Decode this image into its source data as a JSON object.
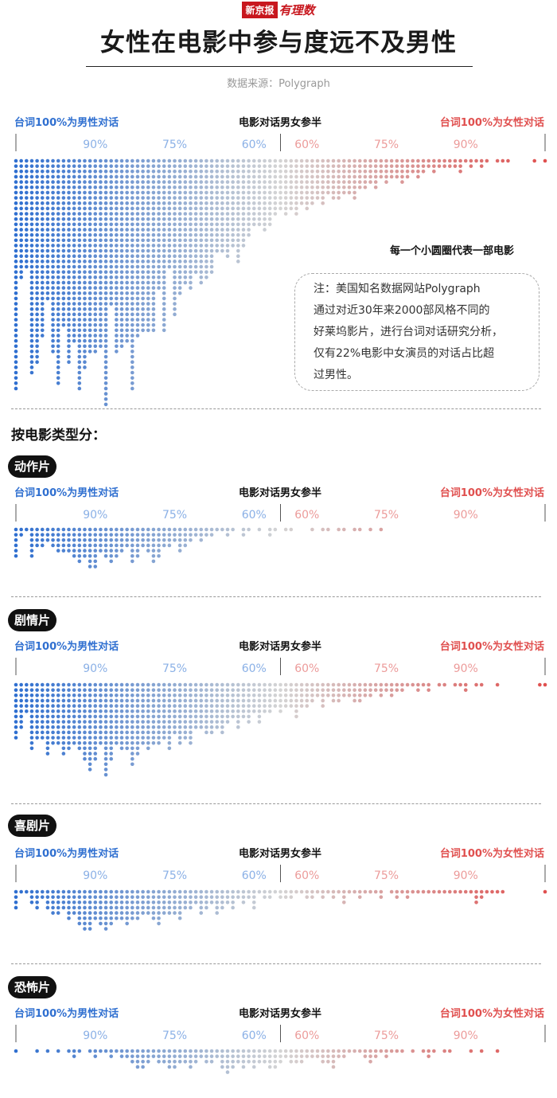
{
  "header": {
    "brand_name": "新京报",
    "brand_column": "有理数",
    "title": "女性在电影中参与度远不及男性",
    "source": "数据来源：Polygraph"
  },
  "axis": {
    "left_label": "台词100%为男性对话",
    "center_label": "电影对话男女参半",
    "right_label": "台词100%为女性对话",
    "tick_labels": [
      "90%",
      "75%",
      "60%",
      "60%",
      "75%",
      "90%"
    ]
  },
  "note": {
    "caption": "每一个小圆圈代表一部电影",
    "lines": [
      "注：美国知名数据网站Polygraph",
      "通过对近30年来2000部风格不同的",
      "好莱坞影片，进行台词对话研究分析，",
      "仅有22%电影中女演员的对话占比超",
      "过男性。"
    ]
  },
  "section_title": "按电影类型分：",
  "colors": {
    "male": "#2f6fd0",
    "neutral": "#d4d4d4",
    "female": "#e0504f",
    "tick_male": "#8ab0e6",
    "tick_female": "#ec9b9a"
  },
  "chart_data": [
    {
      "type": "dot-histogram",
      "name": "",
      "x": [
        0,
        1,
        2,
        3,
        4,
        5,
        6,
        7,
        8,
        9,
        10,
        11,
        12,
        13,
        14,
        15,
        16,
        17,
        18,
        19,
        20,
        21,
        22,
        23,
        24,
        25,
        26,
        27,
        28,
        29,
        30,
        31,
        32,
        33,
        34,
        35,
        36,
        37,
        38,
        39,
        40,
        41,
        42,
        43,
        44,
        45,
        46,
        47,
        48,
        49,
        50,
        51,
        52,
        53,
        54,
        55,
        56,
        57,
        58,
        59,
        60,
        61,
        62,
        63,
        64,
        65,
        66,
        67,
        68,
        69,
        70,
        71,
        72,
        73,
        74,
        75,
        76,
        77,
        78,
        79,
        80,
        81,
        82,
        83,
        84,
        85,
        86,
        87,
        88,
        89,
        90,
        91,
        92,
        93,
        94,
        95,
        96,
        97,
        98,
        99,
        100
      ],
      "counts": [
        44,
        23,
        21,
        41,
        39,
        34,
        27,
        37,
        43,
        32,
        39,
        35,
        44,
        40,
        37,
        37,
        36,
        47,
        28,
        37,
        36,
        35,
        44,
        34,
        33,
        33,
        33,
        25,
        33,
        21,
        30,
        26,
        24,
        25,
        22,
        24,
        23,
        22,
        18,
        18,
        19,
        17,
        20,
        17,
        15,
        13,
        13,
        14,
        13,
        11,
        10,
        11,
        10,
        11,
        9,
        10,
        9,
        8,
        9,
        7,
        8,
        8,
        7,
        7,
        8,
        6,
        6,
        5,
        6,
        4,
        5,
        4,
        4,
        5,
        4,
        3,
        4,
        3,
        2,
        3,
        2,
        2,
        2,
        2,
        3,
        1,
        2,
        1,
        2,
        1,
        0,
        1,
        1,
        1,
        0,
        0,
        0,
        0,
        1,
        0,
        1
      ],
      "xlabel_left": "台词100%为男性对话",
      "xlabel_center": "电影对话男女参半",
      "xlabel_right": "台词100%为女性对话"
    },
    {
      "type": "dot-histogram",
      "name": "动作片",
      "x": [
        0,
        1,
        2,
        3,
        4,
        5,
        6,
        7,
        8,
        9,
        10,
        11,
        12,
        13,
        14,
        15,
        16,
        17,
        18,
        19,
        20,
        21,
        22,
        23,
        24,
        25,
        26,
        27,
        28,
        29,
        30,
        31,
        32,
        33,
        34,
        35,
        36,
        37,
        38,
        39,
        40,
        41,
        42,
        43,
        44,
        45,
        46,
        47,
        48,
        49,
        50,
        51,
        52,
        53,
        54,
        55,
        56,
        57,
        58,
        59,
        60,
        61,
        62,
        63,
        64,
        65,
        66,
        67,
        68,
        69,
        70,
        71,
        72,
        73,
        74,
        75,
        76,
        77,
        78,
        79,
        80,
        81,
        82,
        83,
        84,
        85,
        86,
        87,
        88,
        89,
        90,
        91,
        92,
        93,
        94,
        95,
        96,
        97,
        98,
        99,
        100
      ],
      "counts": [
        6,
        2,
        1,
        6,
        4,
        4,
        3,
        4,
        5,
        5,
        5,
        6,
        7,
        6,
        8,
        8,
        5,
        6,
        7,
        6,
        5,
        4,
        7,
        6,
        4,
        5,
        7,
        6,
        4,
        4,
        3,
        5,
        4,
        3,
        2,
        3,
        2,
        2,
        1,
        1,
        2,
        1,
        0,
        2,
        1,
        0,
        1,
        0,
        2,
        1,
        0,
        1,
        1,
        0,
        0,
        0,
        1,
        0,
        1,
        1,
        0,
        1,
        1,
        0,
        1,
        1,
        0,
        1,
        0,
        1,
        0,
        0,
        0,
        0,
        0,
        0,
        0,
        0,
        0,
        0,
        0,
        0,
        0,
        0,
        0,
        0,
        0,
        0,
        0,
        0,
        0,
        0,
        0,
        0,
        0,
        0,
        0,
        0,
        0,
        0,
        0
      ]
    },
    {
      "type": "dot-histogram",
      "name": "剧情片",
      "x": [
        0,
        1,
        2,
        3,
        4,
        5,
        6,
        7,
        8,
        9,
        10,
        11,
        12,
        13,
        14,
        15,
        16,
        17,
        18,
        19,
        20,
        21,
        22,
        23,
        24,
        25,
        26,
        27,
        28,
        29,
        30,
        31,
        32,
        33,
        34,
        35,
        36,
        37,
        38,
        39,
        40,
        41,
        42,
        43,
        44,
        45,
        46,
        47,
        48,
        49,
        50,
        51,
        52,
        53,
        54,
        55,
        56,
        57,
        58,
        59,
        60,
        61,
        62,
        63,
        64,
        65,
        66,
        67,
        68,
        69,
        70,
        71,
        72,
        73,
        74,
        75,
        76,
        77,
        78,
        79,
        80,
        81,
        82,
        83,
        84,
        85,
        86,
        87,
        88,
        89,
        90,
        91,
        92,
        93,
        94,
        95,
        96,
        97,
        98,
        99,
        100
      ],
      "counts": [
        11,
        9,
        6,
        13,
        11,
        11,
        14,
        12,
        12,
        14,
        13,
        12,
        13,
        15,
        17,
        15,
        12,
        18,
        15,
        12,
        13,
        13,
        16,
        14,
        12,
        13,
        12,
        12,
        11,
        13,
        10,
        12,
        11,
        12,
        9,
        9,
        10,
        10,
        9,
        10,
        8,
        7,
        9,
        7,
        8,
        6,
        8,
        6,
        6,
        5,
        6,
        5,
        5,
        7,
        5,
        5,
        4,
        3,
        5,
        3,
        4,
        4,
        3,
        3,
        4,
        4,
        3,
        3,
        2,
        3,
        2,
        3,
        2,
        2,
        1,
        1,
        2,
        1,
        2,
        0,
        1,
        1,
        0,
        1,
        1,
        2,
        0,
        1,
        1,
        0,
        0,
        1,
        0,
        0,
        0,
        0,
        0,
        0,
        0,
        1,
        1
      ]
    },
    {
      "type": "dot-histogram",
      "name": "喜剧片",
      "x": [
        0,
        1,
        2,
        3,
        4,
        5,
        6,
        7,
        8,
        9,
        10,
        11,
        12,
        13,
        14,
        15,
        16,
        17,
        18,
        19,
        20,
        21,
        22,
        23,
        24,
        25,
        26,
        27,
        28,
        29,
        30,
        31,
        32,
        33,
        34,
        35,
        36,
        37,
        38,
        39,
        40,
        41,
        42,
        43,
        44,
        45,
        46,
        47,
        48,
        49,
        50,
        51,
        52,
        53,
        54,
        55,
        56,
        57,
        58,
        59,
        60,
        61,
        62,
        63,
        64,
        65,
        66,
        67,
        68,
        69,
        70,
        71,
        72,
        73,
        74,
        75,
        76,
        77,
        78,
        79,
        80,
        81,
        82,
        83,
        84,
        85,
        86,
        87,
        88,
        89,
        90,
        91,
        92,
        93,
        94,
        95,
        96,
        97,
        98,
        99,
        100
      ],
      "counts": [
        4,
        1,
        1,
        3,
        4,
        2,
        4,
        5,
        5,
        4,
        6,
        5,
        7,
        8,
        8,
        6,
        7,
        8,
        7,
        6,
        6,
        7,
        6,
        6,
        5,
        5,
        6,
        7,
        5,
        5,
        5,
        6,
        4,
        4,
        3,
        5,
        4,
        3,
        5,
        4,
        3,
        4,
        2,
        3,
        2,
        4,
        1,
        2,
        2,
        1,
        2,
        2,
        2,
        1,
        1,
        2,
        2,
        1,
        2,
        1,
        2,
        1,
        3,
        1,
        1,
        2,
        1,
        1,
        1,
        2,
        0,
        1,
        2,
        1,
        2,
        1,
        1,
        1,
        1,
        1,
        1,
        1,
        1,
        1,
        1,
        1,
        1,
        3,
        2,
        1,
        1,
        1,
        1,
        0,
        0,
        0,
        0,
        0,
        0,
        0,
        1
      ]
    },
    {
      "type": "dot-histogram",
      "name": "恐怖片",
      "x": [
        0,
        1,
        2,
        3,
        4,
        5,
        6,
        7,
        8,
        9,
        10,
        11,
        12,
        13,
        14,
        15,
        16,
        17,
        18,
        19,
        20,
        21,
        22,
        23,
        24,
        25,
        26,
        27,
        28,
        29,
        30,
        31,
        32,
        33,
        34,
        35,
        36,
        37,
        38,
        39,
        40,
        41,
        42,
        43,
        44,
        45,
        46,
        47,
        48,
        49,
        50,
        51,
        52,
        53,
        54,
        55,
        56,
        57,
        58,
        59,
        60,
        61,
        62,
        63,
        64,
        65,
        66,
        67,
        68,
        69,
        70,
        71,
        72,
        73,
        74,
        75,
        76,
        77,
        78,
        79,
        80,
        81,
        82,
        83,
        84,
        85,
        86,
        87,
        88,
        89,
        90,
        91,
        92,
        93,
        94,
        95,
        96,
        97,
        98,
        99,
        100
      ],
      "counts": [
        1,
        0,
        0,
        0,
        1,
        0,
        1,
        0,
        1,
        0,
        1,
        2,
        1,
        0,
        1,
        2,
        1,
        1,
        2,
        1,
        2,
        2,
        3,
        4,
        4,
        3,
        2,
        3,
        3,
        4,
        4,
        3,
        3,
        4,
        3,
        2,
        3,
        3,
        2,
        4,
        5,
        4,
        3,
        4,
        3,
        4,
        3,
        3,
        4,
        4,
        3,
        2,
        3,
        3,
        3,
        2,
        2,
        2,
        3,
        3,
        4,
        2,
        2,
        1,
        1,
        1,
        2,
        3,
        2,
        1,
        2,
        1,
        1,
        1,
        0,
        1,
        0,
        1,
        2,
        1,
        0,
        1,
        1,
        0,
        0,
        0,
        1,
        0,
        1,
        0,
        0,
        1,
        0,
        0,
        0,
        0,
        0,
        0,
        0,
        0,
        0
      ]
    }
  ]
}
